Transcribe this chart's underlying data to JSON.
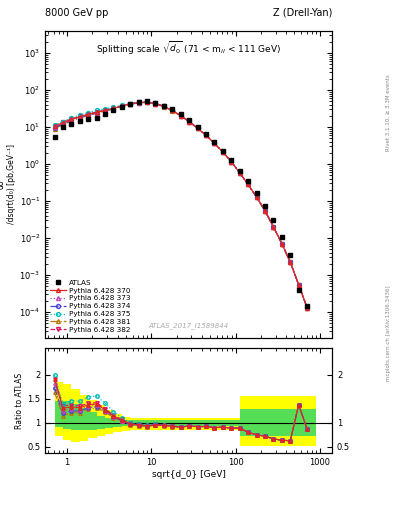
{
  "title_top_left": "8000 GeV pp",
  "title_top_right": "Z (Drell-Yan)",
  "plot_title": "Splitting scale $\\sqrt{d_0}$ (71 < m$_{ll}$ < 111 GeV)",
  "watermark": "ATLAS_2017_I1589844",
  "right_label_top": "Rivet 3.1.10, ≥ 3.3M events",
  "right_label_bot": "mcplots.cern.ch [arXiv:1306.3436]",
  "xlim": [
    0.55,
    1400
  ],
  "ylim_main": [
    2e-05,
    4000.0
  ],
  "ylim_ratio": [
    0.37,
    2.55
  ],
  "atlas_x": [
    0.71,
    0.89,
    1.12,
    1.41,
    1.78,
    2.24,
    2.82,
    3.55,
    4.47,
    5.62,
    7.08,
    8.91,
    11.2,
    14.1,
    17.8,
    22.4,
    28.2,
    35.5,
    44.7,
    56.2,
    70.8,
    89.1,
    112,
    141,
    178,
    224,
    282,
    355,
    447,
    562,
    708
  ],
  "atlas_y": [
    5.5,
    10.0,
    12.0,
    14.5,
    16.0,
    18.0,
    22.0,
    28.0,
    35.0,
    43.0,
    48.0,
    50.0,
    45.0,
    38.0,
    30.0,
    22.0,
    15.0,
    10.0,
    6.5,
    4.0,
    2.3,
    1.3,
    0.65,
    0.35,
    0.17,
    0.075,
    0.03,
    0.011,
    0.0035,
    0.0004,
    0.00015
  ],
  "pythia_x": [
    0.71,
    0.89,
    1.12,
    1.41,
    1.78,
    2.24,
    2.82,
    3.55,
    4.47,
    5.62,
    7.08,
    8.91,
    11.2,
    14.1,
    17.8,
    22.4,
    28.2,
    35.5,
    44.7,
    56.2,
    70.8,
    89.1,
    112,
    141,
    178,
    224,
    282,
    355,
    447,
    562,
    708
  ],
  "p370_y": [
    10.5,
    13.0,
    16.0,
    19.0,
    22.0,
    25.0,
    28.0,
    32.0,
    37.0,
    42.0,
    46.0,
    47.0,
    43.0,
    36.0,
    28.0,
    20.0,
    14.0,
    9.2,
    6.0,
    3.6,
    2.1,
    1.15,
    0.58,
    0.28,
    0.128,
    0.054,
    0.02,
    0.007,
    0.0022,
    0.00055,
    0.00013
  ],
  "p373_y": [
    10.0,
    12.5,
    15.5,
    18.5,
    21.5,
    24.5,
    27.5,
    31.5,
    36.5,
    41.5,
    45.5,
    46.5,
    43.0,
    36.0,
    28.0,
    20.0,
    14.0,
    9.2,
    6.0,
    3.6,
    2.1,
    1.15,
    0.58,
    0.28,
    0.128,
    0.054,
    0.02,
    0.007,
    0.0022,
    0.00055,
    0.00013
  ],
  "p374_y": [
    9.5,
    12.0,
    15.0,
    18.0,
    21.0,
    24.0,
    27.5,
    31.5,
    36.5,
    41.5,
    45.5,
    46.5,
    43.0,
    36.0,
    28.0,
    20.0,
    14.0,
    9.2,
    6.0,
    3.6,
    2.1,
    1.15,
    0.58,
    0.28,
    0.128,
    0.054,
    0.02,
    0.007,
    0.0022,
    0.00055,
    0.00013
  ],
  "p375_y": [
    11.0,
    14.0,
    17.5,
    21.0,
    24.5,
    28.0,
    31.0,
    34.5,
    38.5,
    43.0,
    47.0,
    47.5,
    43.5,
    36.5,
    28.0,
    20.0,
    14.0,
    9.2,
    6.0,
    3.6,
    2.1,
    1.15,
    0.58,
    0.28,
    0.128,
    0.054,
    0.02,
    0.007,
    0.0022,
    0.00055,
    0.00013
  ],
  "p381_y": [
    9.0,
    11.5,
    14.5,
    17.5,
    20.5,
    23.5,
    27.0,
    31.0,
    36.0,
    41.0,
    45.0,
    46.0,
    42.5,
    35.5,
    27.5,
    20.0,
    14.0,
    9.2,
    6.0,
    3.6,
    2.1,
    1.15,
    0.58,
    0.28,
    0.128,
    0.054,
    0.02,
    0.007,
    0.0022,
    0.00055,
    0.00013
  ],
  "p382_y": [
    10.5,
    13.5,
    16.5,
    19.5,
    22.5,
    25.5,
    28.5,
    32.5,
    37.5,
    42.5,
    46.5,
    47.0,
    43.5,
    36.5,
    28.0,
    20.0,
    14.0,
    9.2,
    6.0,
    3.6,
    2.1,
    1.15,
    0.58,
    0.28,
    0.128,
    0.054,
    0.02,
    0.007,
    0.0022,
    0.00055,
    0.00013
  ],
  "band_x_edges": [
    0.71,
    0.89,
    1.12,
    1.41,
    1.78,
    2.24,
    2.82,
    3.55,
    4.47,
    5.62,
    7.08,
    8.91,
    11.2,
    14.1,
    17.8,
    22.4,
    28.2,
    35.5,
    44.7,
    56.2,
    70.8,
    89.1,
    112,
    141,
    178,
    224,
    282,
    355,
    447,
    562,
    708,
    891
  ],
  "green_low": [
    0.92,
    0.88,
    0.84,
    0.84,
    0.86,
    0.88,
    0.9,
    0.92,
    0.93,
    0.93,
    0.93,
    0.93,
    0.93,
    0.93,
    0.93,
    0.93,
    0.93,
    0.93,
    0.93,
    0.93,
    0.93,
    0.93,
    0.72,
    0.72,
    0.72,
    0.72,
    0.72,
    0.72,
    0.72,
    0.72,
    0.72
  ],
  "green_high": [
    1.45,
    1.45,
    1.38,
    1.3,
    1.22,
    1.15,
    1.1,
    1.07,
    1.05,
    1.05,
    1.05,
    1.05,
    1.05,
    1.05,
    1.05,
    1.05,
    1.05,
    1.05,
    1.05,
    1.05,
    1.05,
    1.05,
    1.28,
    1.28,
    1.28,
    1.28,
    1.28,
    1.28,
    1.28,
    1.28,
    1.28
  ],
  "yellow_low": [
    0.72,
    0.65,
    0.6,
    0.62,
    0.68,
    0.72,
    0.76,
    0.8,
    0.82,
    0.84,
    0.85,
    0.85,
    0.85,
    0.85,
    0.85,
    0.85,
    0.85,
    0.85,
    0.85,
    0.85,
    0.85,
    0.85,
    0.52,
    0.52,
    0.52,
    0.52,
    0.52,
    0.52,
    0.52,
    0.52,
    0.52
  ],
  "yellow_high": [
    1.85,
    1.8,
    1.7,
    1.58,
    1.47,
    1.36,
    1.26,
    1.18,
    1.13,
    1.1,
    1.1,
    1.1,
    1.1,
    1.1,
    1.1,
    1.1,
    1.1,
    1.1,
    1.1,
    1.1,
    1.1,
    1.1,
    1.55,
    1.55,
    1.55,
    1.55,
    1.55,
    1.55,
    1.55,
    1.55,
    1.55
  ],
  "color_370": "#e3231a",
  "color_373": "#bb44bb",
  "color_374": "#4444dd",
  "color_375": "#00bbbb",
  "color_381": "#bb7700",
  "color_382": "#dd1166"
}
